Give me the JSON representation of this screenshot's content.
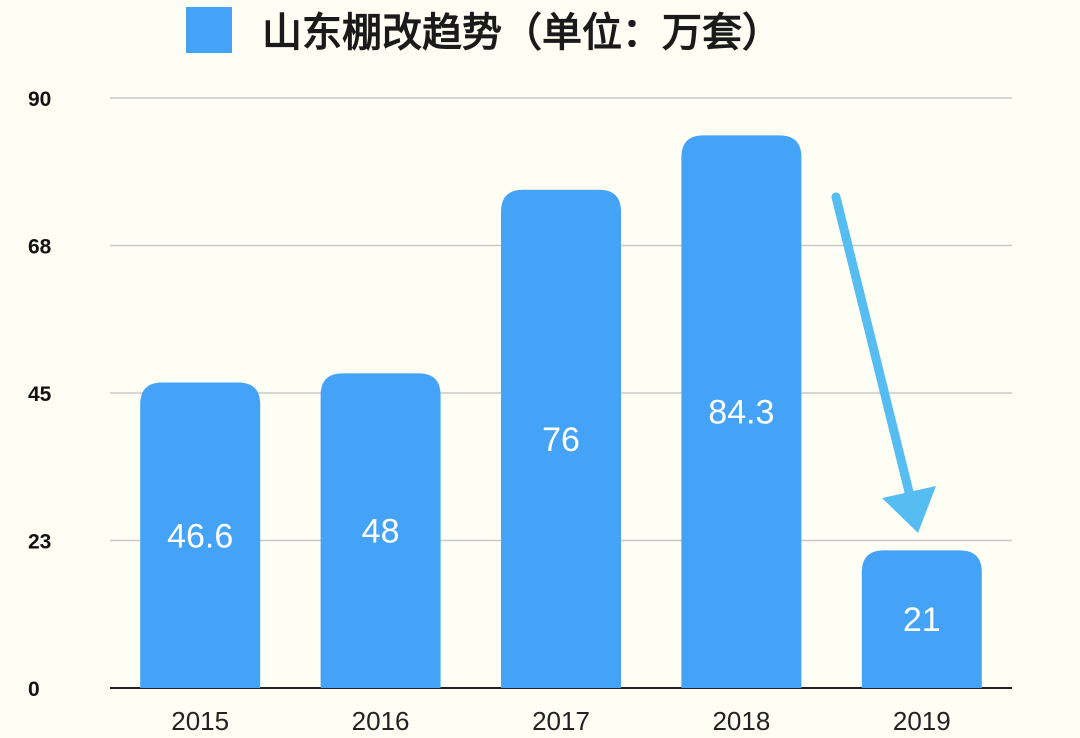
{
  "chart_data": {
    "type": "bar",
    "title": "山东棚改趋势（单位：万套）",
    "categories": [
      "2015",
      "2016",
      "2017",
      "2018",
      "2019"
    ],
    "series": [
      {
        "name": "山东棚改趋势（单位：万套）",
        "values": [
          46.6,
          48,
          76,
          84.3,
          21
        ],
        "labels": [
          "46.6",
          "48",
          "76",
          "84.3",
          "21"
        ]
      }
    ],
    "y_ticks": [
      "0",
      "23",
      "45",
      "68",
      "90"
    ],
    "y_tick_values": [
      0,
      22.5,
      45,
      67.5,
      90
    ],
    "ylim": [
      0,
      90
    ],
    "grid": true,
    "legend_position": "top",
    "annotation": "arrow-down-to-2019",
    "colors": {
      "bar": "#45a3f7",
      "arrow": "#56bdf2",
      "background": "#fffef4",
      "grid": "#c8c8c8"
    }
  }
}
